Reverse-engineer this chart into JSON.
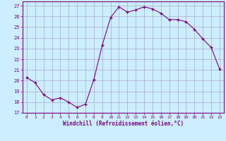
{
  "x": [
    0,
    1,
    2,
    3,
    4,
    5,
    6,
    7,
    8,
    9,
    10,
    11,
    12,
    13,
    14,
    15,
    16,
    17,
    18,
    19,
    20,
    21,
    22,
    23
  ],
  "y": [
    20.3,
    19.8,
    18.7,
    18.2,
    18.4,
    18.0,
    17.5,
    17.8,
    20.1,
    23.3,
    25.9,
    26.9,
    26.4,
    26.6,
    26.9,
    26.7,
    26.3,
    25.7,
    25.7,
    25.5,
    24.8,
    23.9,
    23.1,
    21.1
  ],
  "xlabel": "Windchill (Refroidissement éolien,°C)",
  "xlim": [
    -0.5,
    23.5
  ],
  "ylim": [
    17,
    27.4
  ],
  "yticks": [
    17,
    18,
    19,
    20,
    21,
    22,
    23,
    24,
    25,
    26,
    27
  ],
  "xticks": [
    0,
    1,
    2,
    3,
    4,
    5,
    6,
    7,
    8,
    9,
    10,
    11,
    12,
    13,
    14,
    15,
    16,
    17,
    18,
    19,
    20,
    21,
    22,
    23
  ],
  "line_color": "#800080",
  "marker": "+",
  "bg_color": "#cceeff",
  "grid_color": "#aaaacc",
  "axis_color": "#800080",
  "tick_color": "#800080",
  "font_color": "#800080"
}
